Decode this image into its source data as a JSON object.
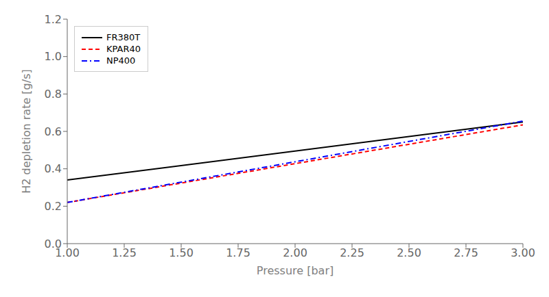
{
  "chart_data": {
    "type": "line",
    "xlabel": "Pressure [bar]",
    "ylabel": "H2 depletion rate [g/s]",
    "x": [
      1.0,
      3.0
    ],
    "series": [
      {
        "name": "FR380T",
        "color": "#000000",
        "line_style": "solid",
        "values": [
          0.34,
          0.65
        ]
      },
      {
        "name": "KPAR40",
        "color": "#ff0000",
        "line_style": "dashed",
        "values": [
          0.22,
          0.635
        ]
      },
      {
        "name": "NP400",
        "color": "#0000ff",
        "line_style": "dashdot",
        "values": [
          0.22,
          0.655
        ]
      }
    ],
    "xlim": [
      1.0,
      3.0
    ],
    "ylim": [
      0.0,
      1.2
    ],
    "xticks": [
      {
        "value": 1.0,
        "label": "1.00"
      },
      1.25,
      {
        "value": 1.5,
        "label": "1.50"
      },
      1.75,
      {
        "value": 2.0,
        "label": "2.00"
      },
      2.25,
      {
        "value": 2.5,
        "label": "2.50"
      },
      2.75,
      {
        "value": 3.0,
        "label": "3.00"
      }
    ],
    "yticks": [
      {
        "value": 0.0,
        "label": "0.0"
      },
      0.2,
      0.4,
      0.6,
      0.8,
      {
        "value": 1.0,
        "label": "1.0"
      },
      1.2
    ],
    "grid": false,
    "legend": "upper left"
  }
}
